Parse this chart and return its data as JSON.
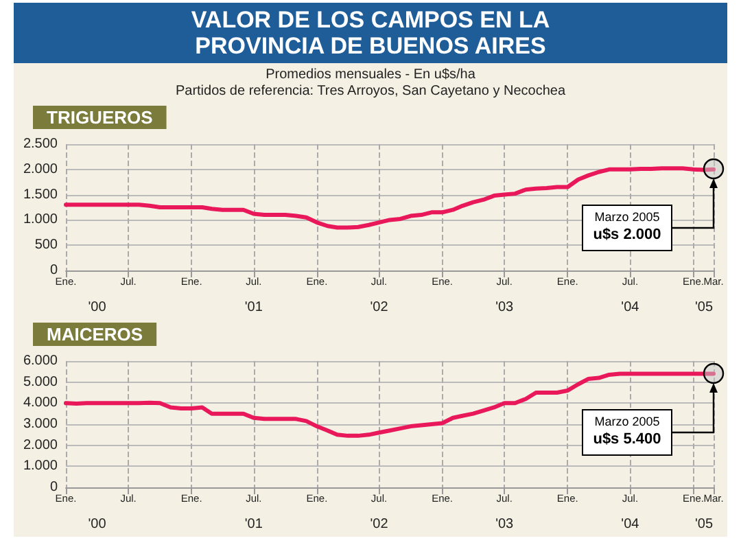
{
  "chart_data": [
    {
      "type": "other",
      "title": "VALOR DE LOS CAMPOS EN LA\nPROVINCIA DE BUENOS AIRES",
      "subtitle": "Promedios mensuales - En u$s/ha\nPartidos de referencia: Tres Arroyos, San Cayetano y Necochea"
    },
    {
      "type": "line",
      "title": "TRIGUEROS",
      "x": [
        "2000-01",
        "2000-02",
        "2000-03",
        "2000-04",
        "2000-05",
        "2000-06",
        "2000-07",
        "2000-08",
        "2000-09",
        "2000-10",
        "2000-11",
        "2000-12",
        "2001-01",
        "2001-02",
        "2001-03",
        "2001-04",
        "2001-05",
        "2001-06",
        "2001-07",
        "2001-08",
        "2001-09",
        "2001-10",
        "2001-11",
        "2001-12",
        "2002-01",
        "2002-02",
        "2002-03",
        "2002-04",
        "2002-05",
        "2002-06",
        "2002-07",
        "2002-08",
        "2002-09",
        "2002-10",
        "2002-11",
        "2002-12",
        "2003-01",
        "2003-02",
        "2003-03",
        "2003-04",
        "2003-05",
        "2003-06",
        "2003-07",
        "2003-08",
        "2003-09",
        "2003-10",
        "2003-11",
        "2003-12",
        "2004-01",
        "2004-02",
        "2004-03",
        "2004-04",
        "2004-05",
        "2004-06",
        "2004-07",
        "2004-08",
        "2004-09",
        "2004-10",
        "2004-11",
        "2004-12",
        "2005-01",
        "2005-02",
        "2005-03"
      ],
      "series": [
        {
          "color": "#e8185a",
          "values": [
            1300,
            1300,
            1300,
            1300,
            1300,
            1300,
            1300,
            1300,
            1280,
            1250,
            1250,
            1250,
            1250,
            1250,
            1220,
            1200,
            1200,
            1200,
            1120,
            1100,
            1100,
            1100,
            1080,
            1050,
            950,
            880,
            850,
            850,
            860,
            900,
            950,
            1000,
            1020,
            1080,
            1100,
            1150,
            1150,
            1200,
            1280,
            1350,
            1400,
            1480,
            1500,
            1520,
            1600,
            1620,
            1630,
            1650,
            1650,
            1800,
            1880,
            1950,
            2000,
            2000,
            2000,
            2010,
            2010,
            2020,
            2020,
            2020,
            2000,
            1990,
            2000
          ]
        }
      ],
      "xlim": [
        "2000-01",
        "2005-03"
      ],
      "xticks": [
        {
          "value": "2000-01",
          "label": "Ene."
        },
        {
          "value": "2000-07",
          "label": "Jul."
        },
        {
          "value": "2001-01",
          "label": "Ene."
        },
        {
          "value": "2001-07",
          "label": "Jul."
        },
        {
          "value": "2002-01",
          "label": "Ene."
        },
        {
          "value": "2002-07",
          "label": "Jul."
        },
        {
          "value": "2003-01",
          "label": "Ene."
        },
        {
          "value": "2003-07",
          "label": "Jul."
        },
        {
          "value": "2004-01",
          "label": "Ene."
        },
        {
          "value": "2004-07",
          "label": "Jul."
        },
        {
          "value": "2005-01",
          "label": "Ene."
        },
        {
          "value": "2005-03",
          "label": "Mar."
        }
      ],
      "x2lim": [
        "2000-01",
        "2005-03"
      ],
      "x2ticks": [
        {
          "value": "2000-04",
          "label": "'00"
        },
        {
          "value": "2001-07",
          "label": "'01"
        },
        {
          "value": "2002-07",
          "label": "'02"
        },
        {
          "value": "2003-07",
          "label": "'03"
        },
        {
          "value": "2004-07",
          "label": "'04"
        },
        {
          "value": "2005-02",
          "label": "'05"
        }
      ],
      "ylim": [
        0,
        2500
      ],
      "yticks": [
        {
          "value": 0,
          "label": "0"
        },
        {
          "value": 500,
          "label": "500"
        },
        {
          "value": 1000,
          "label": "1.000"
        },
        {
          "value": 1500,
          "label": "1.500"
        },
        {
          "value": 2000,
          "label": "2.000"
        },
        {
          "value": 2500,
          "label": "2.500"
        }
      ],
      "grid": true,
      "annotations": [
        "Marzo 2005\nu$s 2.000"
      ]
    },
    {
      "type": "line",
      "title": "MAICEROS",
      "x": [
        "2000-01",
        "2000-02",
        "2000-03",
        "2000-04",
        "2000-05",
        "2000-06",
        "2000-07",
        "2000-08",
        "2000-09",
        "2000-10",
        "2000-11",
        "2000-12",
        "2001-01",
        "2001-02",
        "2001-03",
        "2001-04",
        "2001-05",
        "2001-06",
        "2001-07",
        "2001-08",
        "2001-09",
        "2001-10",
        "2001-11",
        "2001-12",
        "2002-01",
        "2002-02",
        "2002-03",
        "2002-04",
        "2002-05",
        "2002-06",
        "2002-07",
        "2002-08",
        "2002-09",
        "2002-10",
        "2002-11",
        "2002-12",
        "2003-01",
        "2003-02",
        "2003-03",
        "2003-04",
        "2003-05",
        "2003-06",
        "2003-07",
        "2003-08",
        "2003-09",
        "2003-10",
        "2003-11",
        "2003-12",
        "2004-01",
        "2004-02",
        "2004-03",
        "2004-04",
        "2004-05",
        "2004-06",
        "2004-07",
        "2004-08",
        "2004-09",
        "2004-10",
        "2004-11",
        "2004-12",
        "2005-01",
        "2005-02",
        "2005-03"
      ],
      "series": [
        {
          "color": "#e8185a",
          "values": [
            4000,
            3980,
            4000,
            4000,
            4000,
            4000,
            4000,
            4000,
            4020,
            4000,
            3800,
            3750,
            3750,
            3800,
            3500,
            3500,
            3500,
            3500,
            3300,
            3250,
            3250,
            3250,
            3250,
            3150,
            2900,
            2700,
            2500,
            2450,
            2450,
            2500,
            2600,
            2700,
            2800,
            2900,
            2950,
            3000,
            3050,
            3300,
            3400,
            3500,
            3650,
            3800,
            4000,
            4000,
            4200,
            4500,
            4500,
            4500,
            4600,
            4900,
            5150,
            5200,
            5350,
            5400,
            5400,
            5400,
            5400,
            5400,
            5400,
            5400,
            5400,
            5400,
            5400
          ]
        }
      ],
      "xlim": [
        "2000-01",
        "2005-03"
      ],
      "xticks": [
        {
          "value": "2000-01",
          "label": "Ene."
        },
        {
          "value": "2000-07",
          "label": "Jul."
        },
        {
          "value": "2001-01",
          "label": "Ene."
        },
        {
          "value": "2001-07",
          "label": "Jul."
        },
        {
          "value": "2002-01",
          "label": "Ene."
        },
        {
          "value": "2002-07",
          "label": "Jul."
        },
        {
          "value": "2003-01",
          "label": "Ene."
        },
        {
          "value": "2003-07",
          "label": "Jul."
        },
        {
          "value": "2004-01",
          "label": "Ene."
        },
        {
          "value": "2004-07",
          "label": "Jul."
        },
        {
          "value": "2005-01",
          "label": "Ene."
        },
        {
          "value": "2005-03",
          "label": "Mar."
        }
      ],
      "x2lim": [
        "2000-01",
        "2005-03"
      ],
      "x2ticks": [
        {
          "value": "2000-04",
          "label": "'00"
        },
        {
          "value": "2001-07",
          "label": "'01"
        },
        {
          "value": "2002-07",
          "label": "'02"
        },
        {
          "value": "2003-07",
          "label": "'03"
        },
        {
          "value": "2004-07",
          "label": "'04"
        },
        {
          "value": "2005-02",
          "label": "'05"
        }
      ],
      "ylim": [
        0,
        6000
      ],
      "yticks": [
        {
          "value": 0,
          "label": "0"
        },
        {
          "value": 1000,
          "label": "1.000"
        },
        {
          "value": 2000,
          "label": "2.000"
        },
        {
          "value": 3000,
          "label": "3.000"
        },
        {
          "value": 4000,
          "label": "4.000"
        },
        {
          "value": 5000,
          "label": "5.000"
        },
        {
          "value": 6000,
          "label": "6.000"
        }
      ],
      "grid": true,
      "annotations": [
        "Marzo 2005\nu$s 5.400"
      ]
    }
  ]
}
